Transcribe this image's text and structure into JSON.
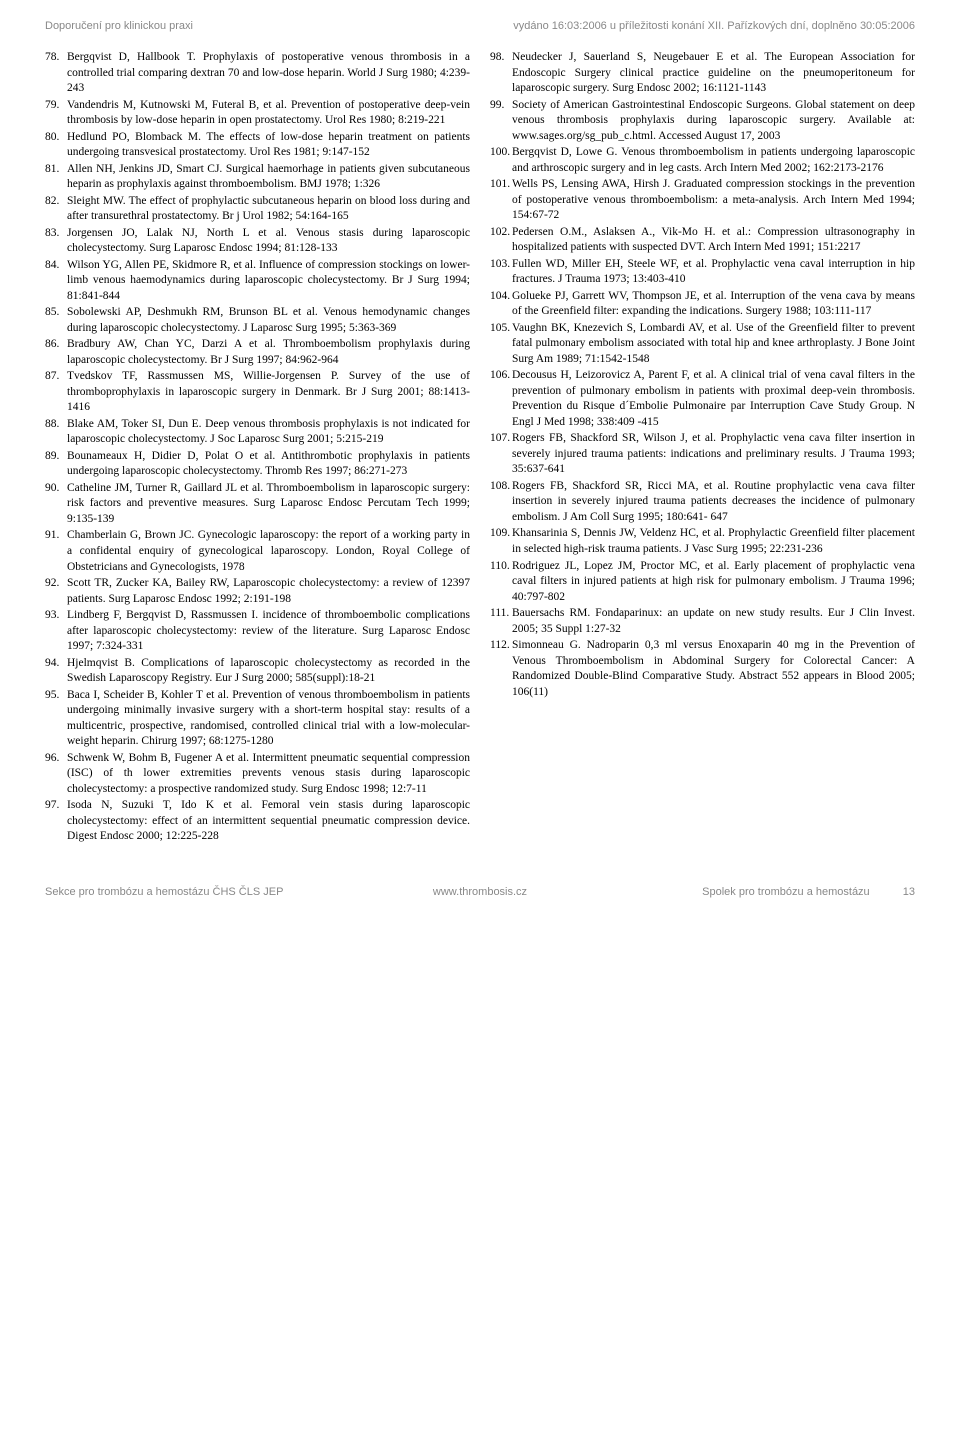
{
  "header": {
    "left": "Doporučení pro klinickou praxi",
    "right": "vydáno 16:03:2006 u příležitosti konání XII. Pařízkových dní, doplněno 30:05:2006"
  },
  "references_left": [
    {
      "num": "78.",
      "text": "Bergqvist D, Hallbook T. Prophylaxis of postoperative venous thrombosis in a controlled trial comparing dextran 70 and low-dose heparin. World J Surg 1980; 4:239-243"
    },
    {
      "num": "79.",
      "text": "Vandendris M, Kutnowski M, Futeral B, et al. Prevention of postoperative deep-vein thrombosis by low-dose heparin in open prostatectomy. Urol Res 1980; 8:219-221"
    },
    {
      "num": "80.",
      "text": "Hedlund PO, Blomback M. The effects of low-dose heparin treatment on patients undergoing transvesical prostatectomy. Urol Res 1981; 9:147-152"
    },
    {
      "num": "81.",
      "text": "Allen NH, Jenkins JD, Smart CJ. Surgical haemorhage in patients given subcutaneous heparin as prophylaxis against thromboembolism. BMJ 1978; 1:326"
    },
    {
      "num": "82.",
      "text": "Sleight MW. The effect of prophylactic subcutaneous heparin on blood loss during and after transurethral prostatectomy. Br j Urol 1982; 54:164-165"
    },
    {
      "num": "83.",
      "text": "Jorgensen JO, Lalak NJ, North L et al. Venous stasis during laparoscopic cholecystectomy. Surg Laparosc Endosc 1994; 81:128-133"
    },
    {
      "num": "84.",
      "text": "Wilson YG, Allen PE, Skidmore R, et al. Influence of compression stockings on lower-limb venous haemodynamics during laparoscopic cholecystectomy. Br J Surg 1994; 81:841-844"
    },
    {
      "num": "85.",
      "text": "Sobolewski AP, Deshmukh RM, Brunson BL et al. Venous hemodynamic changes during laparoscopic cholecystectomy. J Laparosc Surg 1995; 5:363-369"
    },
    {
      "num": "86.",
      "text": "Bradbury AW, Chan YC, Darzi A et al. Thromboembolism prophylaxis during laparoscopic cholecystectomy. Br J Surg 1997; 84:962-964"
    },
    {
      "num": "87.",
      "text": "Tvedskov TF, Rassmussen MS, Willie-Jorgensen P. Survey of the use of thromboprophylaxis in laparoscopic surgery in Denmark. Br J Surg 2001; 88:1413-1416"
    },
    {
      "num": "88.",
      "text": "Blake AM, Toker SI, Dun E. Deep venous thrombosis prophylaxis is not indicated for laparoscopic cholecystectomy. J Soc Laparosc Surg 2001; 5:215-219"
    },
    {
      "num": "89.",
      "text": "Bounameaux H, Didier D, Polat O et al. Antithrombotic prophylaxis in patients undergoing laparoscopic cholecystectomy. Thromb Res 1997; 86:271-273"
    },
    {
      "num": "90.",
      "text": "Catheline JM, Turner R, Gaillard JL et al. Thromboembolism in laparoscopic surgery: risk factors and preventive measures. Surg Laparosc Endosc Percutam Tech 1999; 9:135-139"
    },
    {
      "num": "91.",
      "text": "Chamberlain G, Brown JC. Gynecologic laparoscopy: the report of a working party in a confidental enquiry of gynecological laparoscopy. London, Royal College of Obstetricians and Gynecologists, 1978"
    },
    {
      "num": "92.",
      "text": "Scott TR, Zucker KA, Bailey RW, Laparoscopic cholecystectomy: a review of 12397 patients. Surg Laparosc Endosc 1992; 2:191-198"
    },
    {
      "num": "93.",
      "text": "Lindberg F, Bergqvist D, Rassmussen I. incidence of thromboembolic complications after laparoscopic cholecystectomy: review of the literature. Surg Laparosc Endosc 1997; 7:324-331"
    },
    {
      "num": "94.",
      "text": "Hjelmqvist B. Complications of laparoscopic cholecystectomy as recorded in the Swedish Laparoscopy Registry. Eur J Surg 2000; 585(suppl):18-21"
    },
    {
      "num": "95.",
      "text": "Baca I, Scheider B, Kohler T et al. Prevention of venous thromboembolism in patients undergoing minimally invasive surgery with a short-term hospital stay: results of a multicentric, prospective, randomised, controlled clinical trial with a low-molecular-weight heparin. Chirurg 1997; 68:1275-1280"
    },
    {
      "num": "96.",
      "text": "Schwenk W, Bohm B, Fugener A et al. Intermittent pneumatic sequential compression (ISC) of th lower extremities prevents venous stasis during laparoscopic cholecystectomy: a prospective randomized study. Surg Endosc 1998; 12:7-11"
    },
    {
      "num": "97.",
      "text": "Isoda N, Suzuki T, Ido K et al. Femoral vein stasis during laparoscopic cholecystectomy: effect of an intermittent sequential pneumatic compression device. Digest Endosc 2000; 12:225-228"
    }
  ],
  "references_right": [
    {
      "num": "98.",
      "text": "Neudecker J, Sauerland S, Neugebauer E et al. The European Association for Endoscopic Surgery clinical practice guideline on the pneumoperitoneum for laparoscopic surgery. Surg Endosc 2002; 16:1121-1143"
    },
    {
      "num": "99.",
      "text": "Society of American Gastrointestinal Endoscopic Surgeons. Global statement on deep venous thrombosis prophylaxis during laparoscopic surgery. Available at: www.sages.org/sg_pub_c.html. Accessed August 17, 2003"
    },
    {
      "num": "100.",
      "text": "Bergqvist D, Lowe G. Venous thromboembolism in patients undergoing laparoscopic and arthroscopic surgery and in leg casts. Arch Intern Med 2002; 162:2173-2176"
    },
    {
      "num": "101.",
      "text": "Wells PS, Lensing AWA, Hirsh J. Graduated compression stockings in the prevention of postoperative venous thromboembolism: a meta-analysis. Arch Intern Med 1994; 154:67-72"
    },
    {
      "num": "102.",
      "text": "Pedersen O.M., Aslaksen A., Vik-Mo H. et al.: Compression ultrasonography in hospitalized patients with suspected DVT. Arch Intern Med 1991; 151:2217"
    },
    {
      "num": "103.",
      "text": "Fullen WD, Miller EH, Steele WF, et al. Prophylactic vena caval interruption in hip fractures. J Trauma 1973; 13:403-410"
    },
    {
      "num": "104.",
      "text": "Golueke PJ, Garrett WV, Thompson JE, et al. Interruption of the vena cava by means of the Greenfield filter: expanding the indications. Surgery 1988; 103:111-117"
    },
    {
      "num": "105.",
      "text": "Vaughn BK, Knezevich S, Lombardi AV, et al. Use of the Greenfield filter to prevent fatal pulmonary embolism associated with total hip and knee arthroplasty. J Bone Joint Surg Am 1989; 71:1542-1548"
    },
    {
      "num": "106.",
      "text": "Decousus H, Leizorovicz A, Parent F, et al. A clinical trial of vena caval filters in the prevention of pulmonary embolism in patients with proximal deep-vein thrombosis. Prevention du Risque d´Embolie Pulmonaire par Interruption Cave Study Group. N Engl J Med 1998; 338:409 -415"
    },
    {
      "num": "107.",
      "text": "Rogers FB, Shackford SR, Wilson J, et al. Prophylactic vena cava filter insertion in severely injured trauma patients: indications and preliminary results. J Trauma 1993; 35:637-641"
    },
    {
      "num": "108.",
      "text": "Rogers FB, Shackford SR, Ricci MA, et al. Routine prophylactic vena cava filter insertion in severely injured trauma patients decreases the incidence of pulmonary embolism. J Am Coll Surg 1995; 180:641- 647"
    },
    {
      "num": "109.",
      "text": "Khansarinia S, Dennis JW, Veldenz HC, et al. Prophylactic Greenfield filter placement in selected high-risk trauma patients. J Vasc Surg 1995; 22:231-236"
    },
    {
      "num": "110.",
      "text": "Rodriguez JL, Lopez JM, Proctor MC, et al. Early placement of prophylactic vena caval filters in injured patients at high risk for pulmonary embolism. J Trauma 1996; 40:797-802"
    },
    {
      "num": "111.",
      "text": "Bauersachs RM. Fondaparinux: an update on new study results. Eur J Clin Invest. 2005; 35 Suppl 1:27-32"
    },
    {
      "num": "112.",
      "text": "Simonneau G. Nadroparin 0,3 ml versus Enoxaparin 40 mg in the Prevention of Venous Thromboembolism in Abdominal Surgery for Colorectal Cancer: A Randomized Double-Blind Comparative Study. Abstract 552 appears in Blood 2005; 106(11)"
    }
  ],
  "footer": {
    "left": "Sekce pro trombózu a hemostázu ČHS ČLS JEP",
    "center": "www.thrombosis.cz",
    "right": "Spolek pro trombózu a hemostázu",
    "page": "13"
  }
}
